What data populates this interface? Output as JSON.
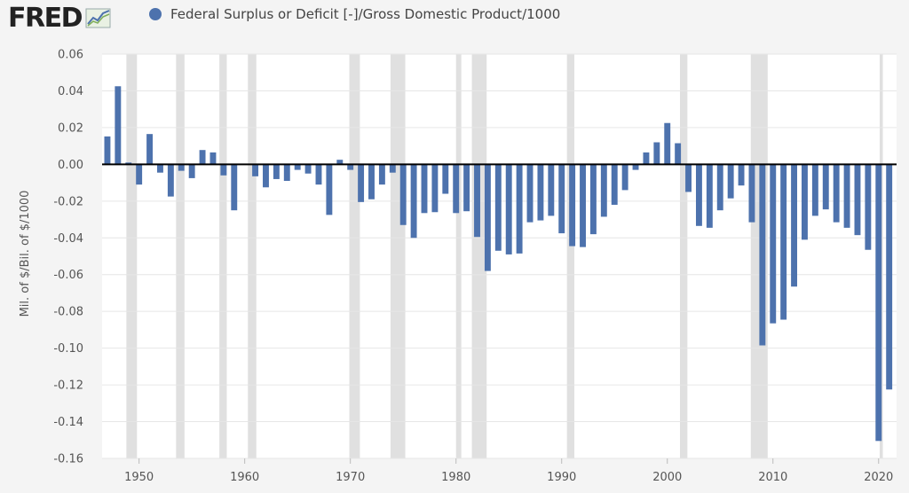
{
  "header": {
    "logo_text": "FRED",
    "legend_label": "Federal Surplus or Deficit [-]/Gross Domestic Product/1000"
  },
  "colors": {
    "series": "#4d72ad",
    "recession": "#e0e0e0",
    "zero_line": "#000000"
  },
  "chart_data": {
    "type": "bar",
    "title": "",
    "ylabel": "Mil. of $/Bil. of $/1000",
    "ylim": [
      -0.16,
      0.06
    ],
    "yticks": [
      "0.06",
      "0.04",
      "0.02",
      "0.00",
      "-0.02",
      "-0.04",
      "-0.06",
      "-0.08",
      "-0.10",
      "-0.12",
      "-0.14",
      "-0.16"
    ],
    "xlim": [
      1946.5,
      2021.7
    ],
    "xticks": [
      "1950",
      "1960",
      "1970",
      "1980",
      "1990",
      "2000",
      "2010",
      "2020"
    ],
    "recessions": [
      [
        1948.8,
        1949.8
      ],
      [
        1953.5,
        1954.3
      ],
      [
        1957.6,
        1958.3
      ],
      [
        1960.3,
        1961.1
      ],
      [
        1969.9,
        1970.9
      ],
      [
        1973.8,
        1975.2
      ],
      [
        1980.0,
        1980.5
      ],
      [
        1981.5,
        1982.9
      ],
      [
        1990.5,
        1991.2
      ],
      [
        2001.2,
        2001.9
      ],
      [
        2007.9,
        2009.5
      ],
      [
        2020.1,
        2020.4
      ]
    ],
    "x": [
      1947,
      1948,
      1949,
      1950,
      1951,
      1952,
      1953,
      1954,
      1955,
      1956,
      1957,
      1958,
      1959,
      1960,
      1961,
      1962,
      1963,
      1964,
      1965,
      1966,
      1967,
      1968,
      1969,
      1970,
      1971,
      1972,
      1973,
      1974,
      1975,
      1976,
      1977,
      1978,
      1979,
      1980,
      1981,
      1982,
      1983,
      1984,
      1985,
      1986,
      1987,
      1988,
      1989,
      1990,
      1991,
      1992,
      1993,
      1994,
      1995,
      1996,
      1997,
      1998,
      1999,
      2000,
      2001,
      2002,
      2003,
      2004,
      2005,
      2006,
      2007,
      2008,
      2009,
      2010,
      2011,
      2012,
      2013,
      2014,
      2015,
      2016,
      2017,
      2018,
      2019,
      2020,
      2021
    ],
    "values": [
      0.0152,
      0.0425,
      0.001,
      -0.011,
      0.0165,
      -0.0045,
      -0.0175,
      -0.0035,
      -0.0075,
      0.0078,
      0.0065,
      -0.006,
      -0.025,
      0.0,
      -0.0065,
      -0.0125,
      -0.008,
      -0.009,
      -0.003,
      -0.005,
      -0.011,
      -0.0275,
      0.0025,
      -0.003,
      -0.0205,
      -0.019,
      -0.011,
      -0.0045,
      -0.033,
      -0.04,
      -0.0265,
      -0.026,
      -0.016,
      -0.0265,
      -0.0255,
      -0.0395,
      -0.058,
      -0.047,
      -0.049,
      -0.0485,
      -0.0315,
      -0.0305,
      -0.028,
      -0.0375,
      -0.0445,
      -0.045,
      -0.038,
      -0.0285,
      -0.022,
      -0.014,
      -0.003,
      0.0065,
      0.012,
      0.0225,
      0.0115,
      -0.015,
      -0.0335,
      -0.0345,
      -0.025,
      -0.0185,
      -0.0115,
      -0.0315,
      -0.0985,
      -0.0865,
      -0.0845,
      -0.0665,
      -0.041,
      -0.028,
      -0.0245,
      -0.0315,
      -0.0345,
      -0.0385,
      -0.0465,
      -0.1505,
      -0.1225
    ]
  }
}
